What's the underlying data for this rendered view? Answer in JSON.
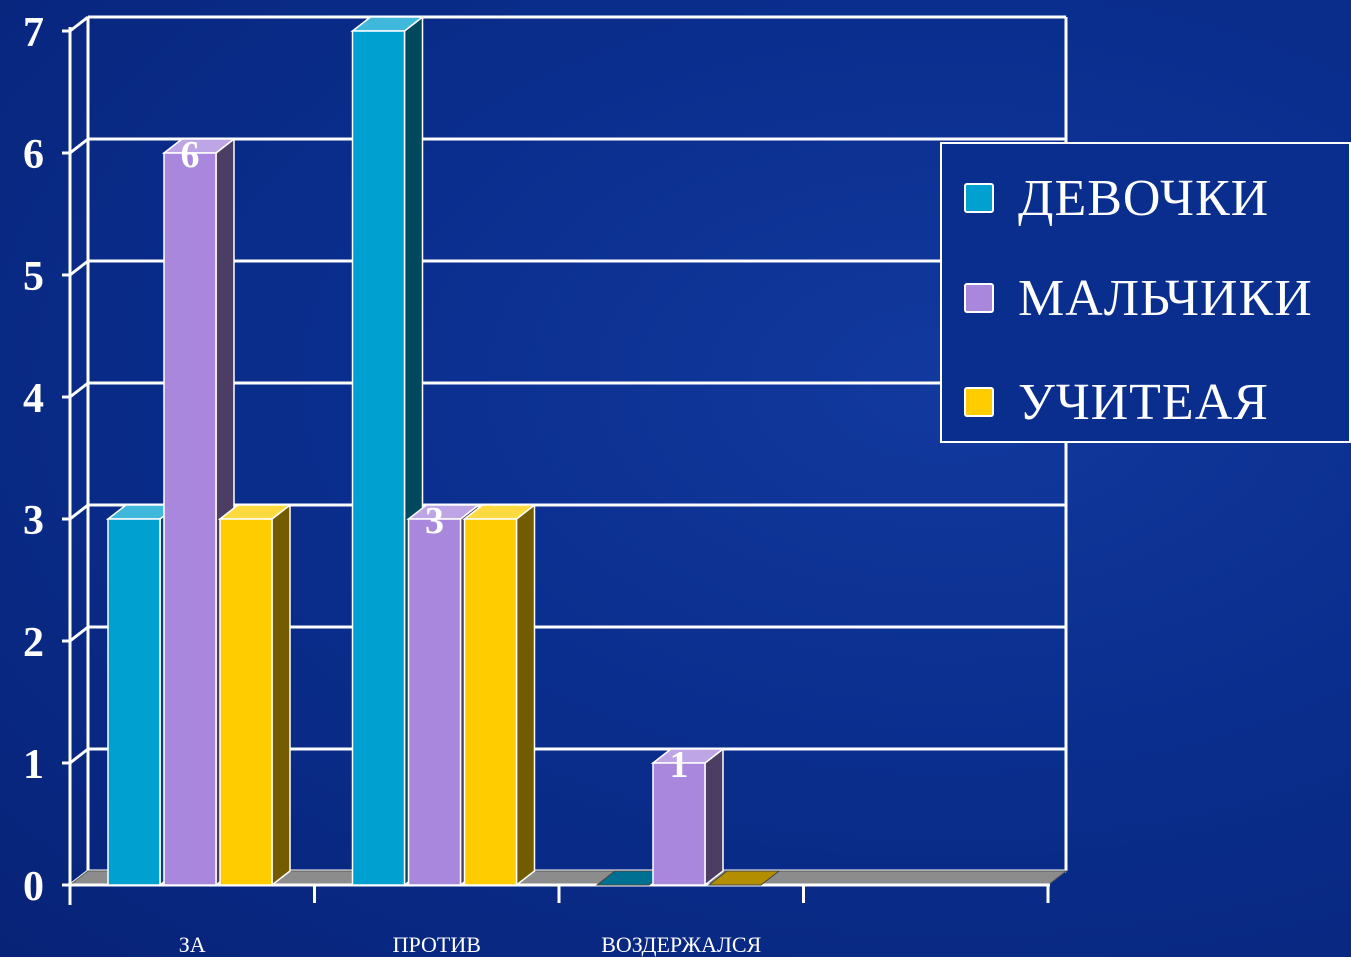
{
  "chart_data": {
    "type": "bar",
    "categories": [
      "ЗА",
      "ПРОТИВ",
      "ВОЗДЕРЖАЛСЯ"
    ],
    "series": [
      {
        "name": "ДЕВОЧКИ",
        "values": [
          3,
          7,
          0
        ],
        "color": "#00a0d0",
        "data_labels": [
          null,
          null,
          null
        ]
      },
      {
        "name": "МАЛЬЧИКИ",
        "values": [
          6,
          3,
          1
        ],
        "color": "#a887dc",
        "data_labels": [
          "6",
          "3",
          "1"
        ]
      },
      {
        "name": "УЧИТЕЛЯ",
        "values": [
          3,
          3,
          0
        ],
        "color": "#ffcc00",
        "data_labels": [
          null,
          null,
          null
        ]
      }
    ],
    "ylim": [
      0,
      7
    ],
    "y_ticks": [
      "0",
      "1",
      "2",
      "3",
      "4",
      "5",
      "6",
      "7"
    ],
    "grid": true,
    "legend_position": "right",
    "title": "",
    "xlabel": "",
    "ylabel": ""
  },
  "legend": {
    "items": [
      {
        "label": "ДЕВОЧКИ",
        "color": "#00a0d0"
      },
      {
        "label": "МАЛЬЧИКИ",
        "color": "#a887dc"
      },
      {
        "label": "УЧИТЕАЯ",
        "color": "#ffcc00"
      }
    ]
  }
}
